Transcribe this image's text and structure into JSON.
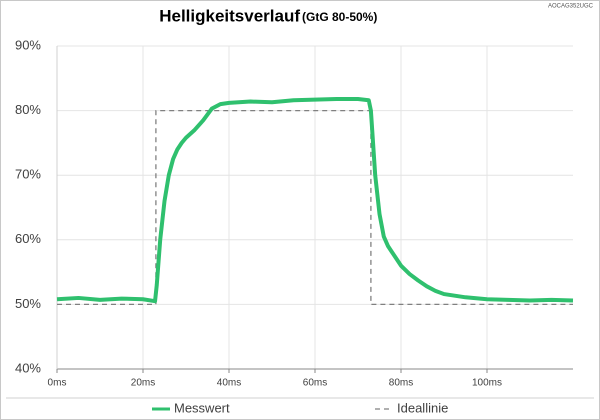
{
  "chart_data": {
    "type": "line",
    "title": "Helligkeitsverlauf",
    "subtitle": "(GtG 80-50%)",
    "annotation": "AOCAG352UGC",
    "xlim": [
      0,
      120
    ],
    "ylim": [
      40,
      90
    ],
    "xticks": [
      {
        "value": 0,
        "label": "0ms"
      },
      {
        "value": 20,
        "label": "20ms"
      },
      {
        "value": 40,
        "label": "40ms"
      },
      {
        "value": 60,
        "label": "60ms"
      },
      {
        "value": 80,
        "label": "80ms"
      },
      {
        "value": 100,
        "label": "100ms"
      }
    ],
    "yticks": [
      {
        "value": 40,
        "label": "40%"
      },
      {
        "value": 50,
        "label": "50%"
      },
      {
        "value": 60,
        "label": "60%"
      },
      {
        "value": 70,
        "label": "70%"
      },
      {
        "value": 80,
        "label": "80%"
      },
      {
        "value": 90,
        "label": "90%"
      }
    ],
    "grid": true,
    "series": [
      {
        "name": "Messwert",
        "color": "#2fc06e",
        "dashed": false,
        "x": [
          0,
          5,
          10,
          15,
          20,
          22.8,
          23.2,
          24,
          25,
          26,
          27,
          28,
          29,
          30,
          32,
          34,
          36,
          38,
          40,
          45,
          50,
          55,
          60,
          65,
          70,
          72.5,
          73,
          74,
          75,
          76,
          77,
          78,
          80,
          82,
          84,
          86,
          88,
          90,
          95,
          100,
          105,
          110,
          115,
          120
        ],
        "values": [
          50.8,
          51,
          50.7,
          50.9,
          50.8,
          50.5,
          53,
          60,
          66,
          70,
          72.5,
          74,
          75,
          75.8,
          77,
          78.5,
          80.3,
          81,
          81.2,
          81.4,
          81.3,
          81.6,
          81.7,
          81.8,
          81.8,
          81.6,
          80,
          70,
          64,
          60.5,
          59,
          58,
          56,
          54.7,
          53.7,
          52.8,
          52.1,
          51.6,
          51.1,
          50.8,
          50.7,
          50.6,
          50.7,
          50.6
        ]
      },
      {
        "name": "Ideallinie",
        "color": "#808080",
        "dashed": true,
        "x": [
          0,
          23,
          23,
          73,
          73,
          120
        ],
        "values": [
          50,
          50,
          80,
          80,
          50,
          50
        ]
      }
    ]
  }
}
